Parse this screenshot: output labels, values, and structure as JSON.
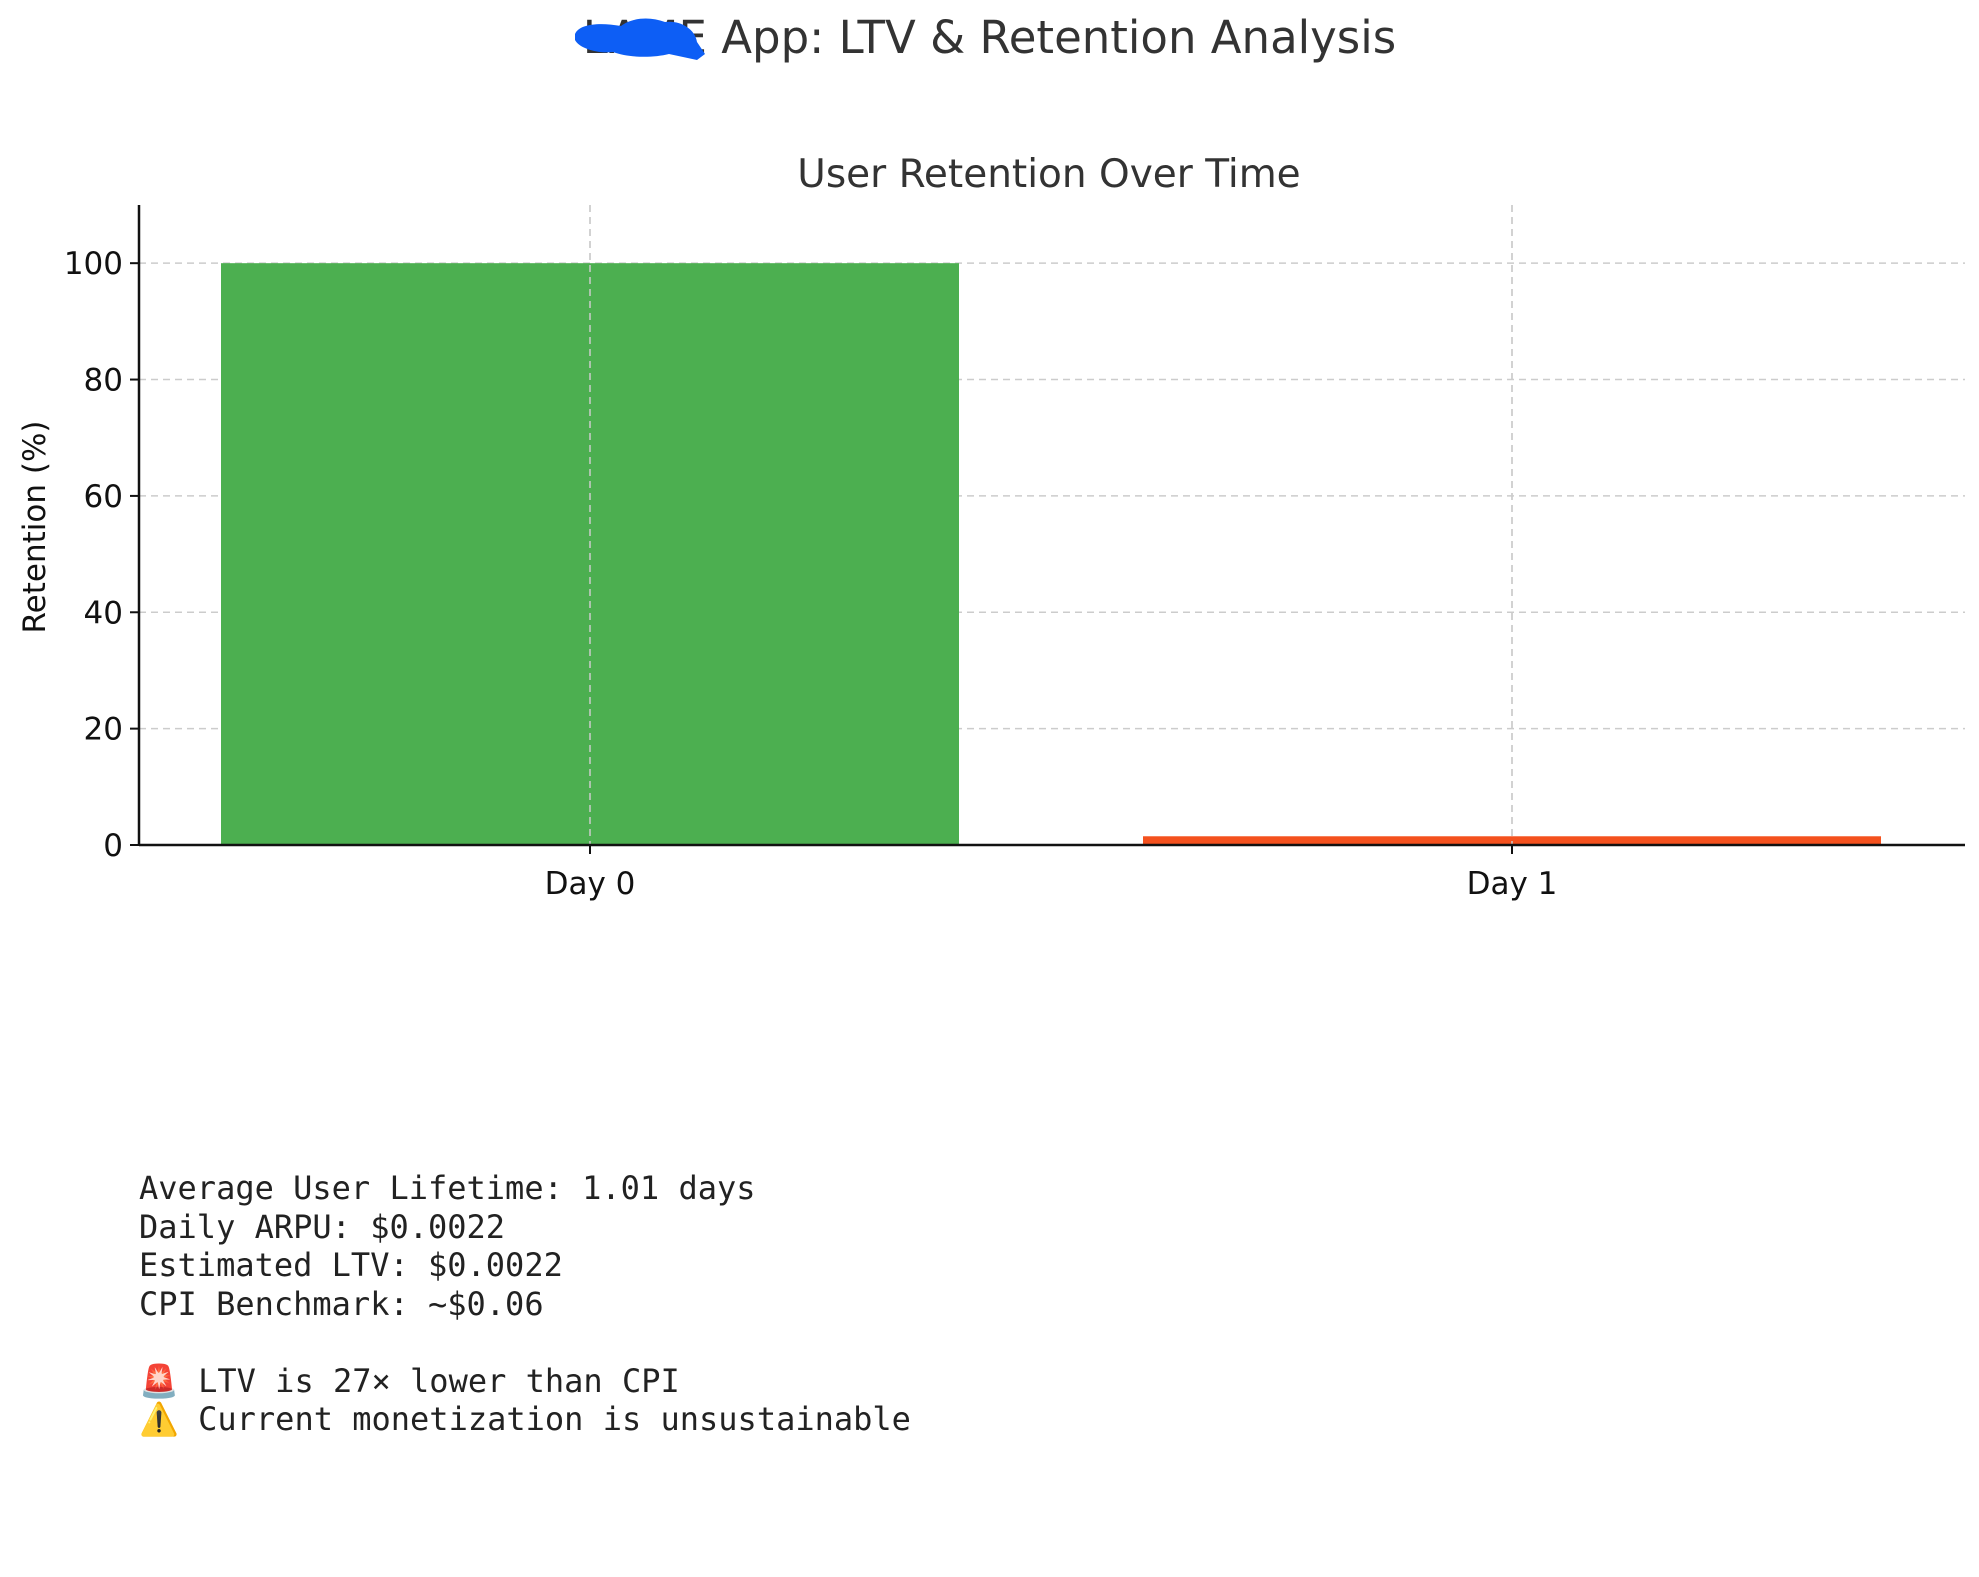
{
  "header": {
    "title_prefix_redacted": "LAME",
    "title_suffix": "App: LTV & Retention Analysis"
  },
  "colors": {
    "day0_bar": "#4caf50",
    "day1_bar": "#f4511e",
    "redaction": "#0d5ef5"
  },
  "chart_data": {
    "type": "bar",
    "title": "User Retention Over Time",
    "xlabel": "",
    "ylabel": "Retention (%)",
    "categories": [
      "Day 0",
      "Day 1"
    ],
    "values": [
      100,
      1.5
    ],
    "bar_colors": [
      "#4caf50",
      "#f4511e"
    ],
    "ylim": [
      0,
      110
    ],
    "yticks": [
      0,
      20,
      40,
      60,
      80,
      100
    ],
    "grid": true
  },
  "stats": {
    "lines": [
      "Average User Lifetime: 1.01 days",
      "Daily ARPU: $0.0022",
      "Estimated LTV: $0.0022",
      "CPI Benchmark: ~$0.06",
      "",
      "🚨 LTV is 27× lower than CPI",
      "⚠️ Current monetization is unsustainable"
    ]
  }
}
